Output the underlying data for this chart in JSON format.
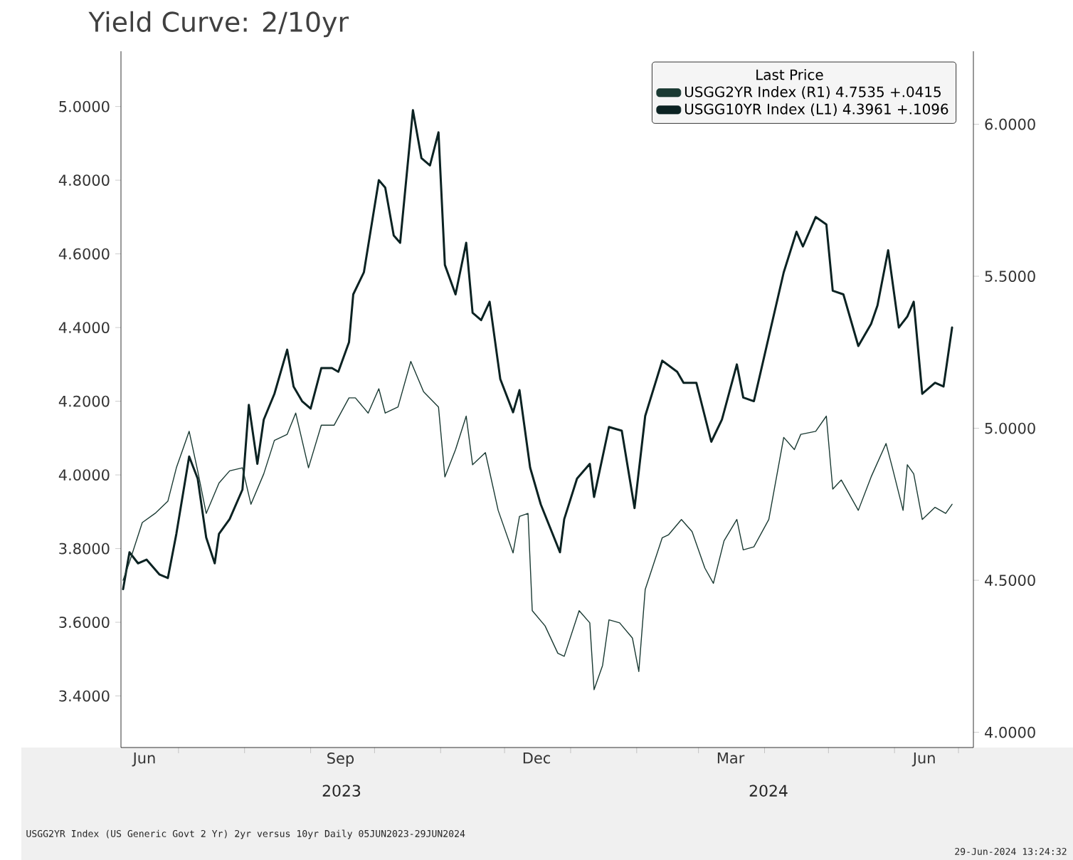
{
  "chart_data": {
    "type": "line",
    "title": "Yield Curve: 2/10yr",
    "legend_title": "Last Price",
    "legend": "top right",
    "marker": "none",
    "line_style": "solid",
    "grid": false,
    "xlim": [
      "2023-06-04",
      "2024-07-08"
    ],
    "xticks": [
      {
        "value": "2023-06-15",
        "label": "Jun"
      },
      {
        "value": "2023-09-15",
        "label": "Sep"
      },
      {
        "value": "2023-12-16",
        "label": "Dec"
      },
      {
        "value": "2024-03-16",
        "label": "Mar"
      },
      {
        "value": "2024-06-15",
        "label": "Jun"
      },
      {
        "value": "2023-07-01",
        "label": null
      },
      {
        "value": "2023-08-01",
        "label": null
      },
      {
        "value": "2023-09-01",
        "label": null
      },
      {
        "value": "2023-10-01",
        "label": null
      },
      {
        "value": "2023-11-01",
        "label": null
      },
      {
        "value": "2023-12-01",
        "label": null
      },
      {
        "value": "2024-01-01",
        "label": null
      },
      {
        "value": "2024-02-01",
        "label": null
      },
      {
        "value": "2024-03-01",
        "label": null
      },
      {
        "value": "2024-04-01",
        "label": null
      },
      {
        "value": "2024-05-01",
        "label": null
      },
      {
        "value": "2024-06-01",
        "label": null
      },
      {
        "value": "2024-07-01",
        "label": null
      }
    ],
    "ylim": [
      3.26,
      5.15
    ],
    "yticks": [
      {
        "value": 3.4,
        "label": "3.4000"
      },
      {
        "value": 3.6,
        "label": "3.6000"
      },
      {
        "value": 3.8,
        "label": "3.8000"
      },
      {
        "value": 4.0,
        "label": "4.0000"
      },
      {
        "value": 4.2,
        "label": "4.2000"
      },
      {
        "value": 4.4,
        "label": "4.4000"
      },
      {
        "value": 4.6,
        "label": "4.6000"
      },
      {
        "value": 4.8,
        "label": "4.8000"
      },
      {
        "value": 5.0,
        "label": "5.0000"
      }
    ],
    "y2lim": [
      3.95,
      6.24
    ],
    "y2ticks": [
      {
        "value": 4.0,
        "label": "4.0000"
      },
      {
        "value": 4.5,
        "label": "4.5000"
      },
      {
        "value": 5.0,
        "label": "5.0000"
      },
      {
        "value": 5.5,
        "label": "5.5000"
      },
      {
        "value": 6.0,
        "label": "6.0000"
      }
    ],
    "annotations": [
      "2023",
      "2024",
      "USGG2YR Index (US Generic Govt 2 Yr) 2yr versus 10yr  Daily 05JUN2023-29JUN2024",
      "29-Jun-2024 13:24:32"
    ],
    "series": [
      {
        "name": "USGG2YR Index  (R1)  4.7535  +.0415",
        "color": "#1a3a33",
        "axis": "y2",
        "x": [
          "2023-06-05",
          "2023-06-08",
          "2023-06-14",
          "2023-06-20",
          "2023-06-26",
          "2023-06-30",
          "2023-07-06",
          "2023-07-10",
          "2023-07-14",
          "2023-07-20",
          "2023-07-25",
          "2023-07-31",
          "2023-08-04",
          "2023-08-10",
          "2023-08-15",
          "2023-08-21",
          "2023-08-25",
          "2023-08-31",
          "2023-09-06",
          "2023-09-12",
          "2023-09-19",
          "2023-09-22",
          "2023-09-28",
          "2023-10-03",
          "2023-10-06",
          "2023-10-12",
          "2023-10-18",
          "2023-10-24",
          "2023-10-31",
          "2023-11-03",
          "2023-11-08",
          "2023-11-13",
          "2023-11-16",
          "2023-11-22",
          "2023-11-28",
          "2023-12-05",
          "2023-12-08",
          "2023-12-12",
          "2023-12-14",
          "2023-12-20",
          "2023-12-26",
          "2023-12-29",
          "2024-01-05",
          "2024-01-10",
          "2024-01-12",
          "2024-01-16",
          "2024-01-19",
          "2024-01-24",
          "2024-01-30",
          "2024-02-02",
          "2024-02-05",
          "2024-02-13",
          "2024-02-16",
          "2024-02-22",
          "2024-02-27",
          "2024-03-04",
          "2024-03-08",
          "2024-03-13",
          "2024-03-19",
          "2024-03-22",
          "2024-03-27",
          "2024-04-03",
          "2024-04-10",
          "2024-04-15",
          "2024-04-18",
          "2024-04-25",
          "2024-04-30",
          "2024-05-03",
          "2024-05-07",
          "2024-05-15",
          "2024-05-21",
          "2024-05-28",
          "2024-05-31",
          "2024-06-05",
          "2024-06-07",
          "2024-06-10",
          "2024-06-14",
          "2024-06-20",
          "2024-06-25",
          "2024-06-28"
        ],
        "values": [
          4.5,
          4.56,
          4.69,
          4.72,
          4.76,
          4.87,
          4.99,
          4.86,
          4.72,
          4.82,
          4.86,
          4.87,
          4.75,
          4.85,
          4.96,
          4.98,
          5.05,
          4.87,
          5.01,
          5.01,
          5.1,
          5.1,
          5.05,
          5.13,
          5.05,
          5.07,
          5.22,
          5.12,
          5.07,
          4.84,
          4.93,
          5.04,
          4.88,
          4.92,
          4.73,
          4.59,
          4.71,
          4.72,
          4.4,
          4.35,
          4.26,
          4.25,
          4.4,
          4.36,
          4.14,
          4.22,
          4.37,
          4.36,
          4.31,
          4.2,
          4.47,
          4.64,
          4.65,
          4.7,
          4.66,
          4.54,
          4.49,
          4.63,
          4.7,
          4.6,
          4.61,
          4.7,
          4.97,
          4.93,
          4.98,
          4.99,
          5.04,
          4.8,
          4.83,
          4.73,
          4.84,
          4.95,
          4.87,
          4.73,
          4.88,
          4.85,
          4.7,
          4.74,
          4.72,
          4.75
        ]
      },
      {
        "name": "USGG10YR Index  (L1)  4.3961  +.1096",
        "color": "#0b2222",
        "x": [
          "2023-06-05",
          "2023-06-08",
          "2023-06-12",
          "2023-06-16",
          "2023-06-22",
          "2023-06-26",
          "2023-06-30",
          "2023-07-06",
          "2023-07-10",
          "2023-07-14",
          "2023-07-18",
          "2023-07-20",
          "2023-07-25",
          "2023-07-31",
          "2023-08-03",
          "2023-08-07",
          "2023-08-10",
          "2023-08-15",
          "2023-08-21",
          "2023-08-24",
          "2023-08-28",
          "2023-09-01",
          "2023-09-06",
          "2023-09-11",
          "2023-09-14",
          "2023-09-19",
          "2023-09-21",
          "2023-09-26",
          "2023-10-03",
          "2023-10-06",
          "2023-10-10",
          "2023-10-13",
          "2023-10-19",
          "2023-10-23",
          "2023-10-27",
          "2023-10-31",
          "2023-11-03",
          "2023-11-08",
          "2023-11-13",
          "2023-11-16",
          "2023-11-20",
          "2023-11-24",
          "2023-11-29",
          "2023-12-05",
          "2023-12-08",
          "2023-12-13",
          "2023-12-18",
          "2023-12-27",
          "2023-12-29",
          "2024-01-04",
          "2024-01-10",
          "2024-01-12",
          "2024-01-19",
          "2024-01-25",
          "2024-01-31",
          "2024-02-05",
          "2024-02-13",
          "2024-02-20",
          "2024-02-23",
          "2024-02-29",
          "2024-03-07",
          "2024-03-12",
          "2024-03-19",
          "2024-03-22",
          "2024-03-27",
          "2024-04-02",
          "2024-04-10",
          "2024-04-16",
          "2024-04-19",
          "2024-04-25",
          "2024-04-30",
          "2024-05-03",
          "2024-05-08",
          "2024-05-15",
          "2024-05-21",
          "2024-05-24",
          "2024-05-29",
          "2024-06-03",
          "2024-06-07",
          "2024-06-10",
          "2024-06-14",
          "2024-06-20",
          "2024-06-24",
          "2024-06-26",
          "2024-06-28"
        ],
        "values": [
          3.69,
          3.79,
          3.76,
          3.77,
          3.73,
          3.72,
          3.84,
          4.05,
          3.99,
          3.83,
          3.76,
          3.84,
          3.88,
          3.96,
          4.19,
          4.03,
          4.15,
          4.22,
          4.34,
          4.24,
          4.2,
          4.18,
          4.29,
          4.29,
          4.28,
          4.36,
          4.49,
          4.55,
          4.8,
          4.78,
          4.65,
          4.63,
          4.99,
          4.86,
          4.84,
          4.93,
          4.57,
          4.49,
          4.63,
          4.44,
          4.42,
          4.47,
          4.26,
          4.17,
          4.23,
          4.02,
          3.92,
          3.79,
          3.88,
          3.99,
          4.03,
          3.94,
          4.13,
          4.12,
          3.91,
          4.16,
          4.31,
          4.28,
          4.25,
          4.25,
          4.09,
          4.15,
          4.3,
          4.21,
          4.2,
          4.35,
          4.55,
          4.66,
          4.62,
          4.7,
          4.68,
          4.5,
          4.49,
          4.35,
          4.41,
          4.46,
          4.61,
          4.4,
          4.43,
          4.47,
          4.22,
          4.25,
          4.24,
          4.32,
          4.4
        ]
      }
    ]
  }
}
